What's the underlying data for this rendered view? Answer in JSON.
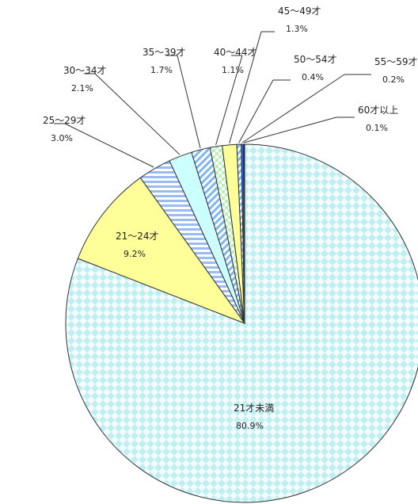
{
  "chart_data": {
    "type": "pie",
    "title": "",
    "slices": [
      {
        "label": "21才未満",
        "value": 80.9,
        "display": "80.9%",
        "color": "#bfeef3",
        "pattern": "diamond"
      },
      {
        "label": "21〜24才",
        "value": 9.2,
        "display": "9.2%",
        "color": "#ffff99",
        "pattern": "solid"
      },
      {
        "label": "25〜29才",
        "value": 3.0,
        "display": "3.0%",
        "color": "#cfe0ff",
        "pattern": "hstripe"
      },
      {
        "label": "30〜34才",
        "value": 2.1,
        "display": "2.1%",
        "color": "#ccffff",
        "pattern": "solid"
      },
      {
        "label": "35〜39才",
        "value": 1.7,
        "display": "1.7%",
        "color": "#a8d8ff",
        "pattern": "dstripe"
      },
      {
        "label": "40〜44才",
        "value": 1.1,
        "display": "1.1%",
        "color": "#ccffcc",
        "pattern": "check"
      },
      {
        "label": "45〜49才",
        "value": 1.3,
        "display": "1.3%",
        "color": "#ffff99",
        "pattern": "solid"
      },
      {
        "label": "50〜54才",
        "value": 0.4,
        "display": "0.4%",
        "color": "#99ccff",
        "pattern": "dstripe"
      },
      {
        "label": "55〜59才",
        "value": 0.2,
        "display": "0.2%",
        "color": "#3366cc",
        "pattern": "solid"
      },
      {
        "label": "60才以上",
        "value": 0.1,
        "display": "0.1%",
        "color": "#000066",
        "pattern": "solid"
      }
    ]
  }
}
